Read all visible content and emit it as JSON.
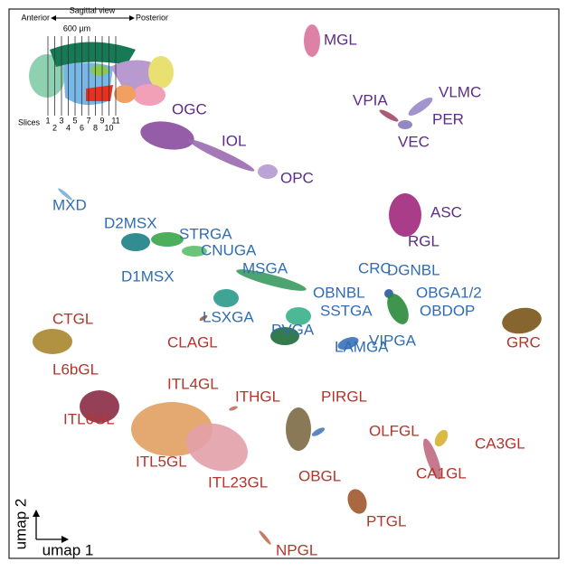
{
  "inset": {
    "anterior": "Anterior",
    "view": "Sagittal view",
    "posterior": "Posterior",
    "scale": "600 µm",
    "slices_label": "Slices",
    "slices": [
      "1",
      "2",
      "3",
      "4",
      "5",
      "6",
      "7",
      "8",
      "9",
      "10",
      "11"
    ]
  },
  "clusters": [
    {
      "label": "MGL",
      "color": "#5b2d86"
    },
    {
      "label": "OGC",
      "color": "#5b2d86"
    },
    {
      "label": "IOL",
      "color": "#5b2d86"
    },
    {
      "label": "OPC",
      "color": "#5b2d86"
    },
    {
      "label": "VPIA",
      "color": "#5b2d86"
    },
    {
      "label": "VLMC",
      "color": "#5b2d86"
    },
    {
      "label": "PER",
      "color": "#5b2d86"
    },
    {
      "label": "VEC",
      "color": "#5b2d86"
    },
    {
      "label": "MXD",
      "color": "#2f6db3"
    },
    {
      "label": "D2MSX",
      "color": "#2f6db3"
    },
    {
      "label": "STRGA",
      "color": "#2f6db3"
    },
    {
      "label": "CNUGA",
      "color": "#2f6db3"
    },
    {
      "label": "D1MSX",
      "color": "#2f6db3"
    },
    {
      "label": "MSGA",
      "color": "#2f6db3"
    },
    {
      "label": "LSXGA",
      "color": "#2f6db3"
    },
    {
      "label": "PVGA",
      "color": "#2f6db3"
    },
    {
      "label": "LAMGA",
      "color": "#2f6db3"
    },
    {
      "label": "VIPGA",
      "color": "#2f6db3"
    },
    {
      "label": "SSTGA",
      "color": "#2f6db3"
    },
    {
      "label": "OBNBL",
      "color": "#2f6db3"
    },
    {
      "label": "CRC",
      "color": "#2f6db3"
    },
    {
      "label": "DGNBL",
      "color": "#2f6db3"
    },
    {
      "label": "OBGA1/2",
      "color": "#2f6db3"
    },
    {
      "label": "OBDOP",
      "color": "#2f6db3"
    },
    {
      "label": "ASC",
      "color": "#5b2d86"
    },
    {
      "label": "RGL",
      "color": "#5b2d86"
    },
    {
      "label": "GRC",
      "color": "#b3352b"
    },
    {
      "label": "CTGL",
      "color": "#b3352b"
    },
    {
      "label": "L6bGL",
      "color": "#b3352b"
    },
    {
      "label": "CLAGL",
      "color": "#b3352b"
    },
    {
      "label": "ITL4GL",
      "color": "#b3352b"
    },
    {
      "label": "ITHGL",
      "color": "#b3352b"
    },
    {
      "label": "ITL6GL",
      "color": "#b3352b"
    },
    {
      "label": "ITL5GL",
      "color": "#b3352b"
    },
    {
      "label": "ITL23GL",
      "color": "#b3352b"
    },
    {
      "label": "PIRGL",
      "color": "#b3352b"
    },
    {
      "label": "OLFGL",
      "color": "#b3352b"
    },
    {
      "label": "OBGL",
      "color": "#b3352b"
    },
    {
      "label": "CA3GL",
      "color": "#b3352b"
    },
    {
      "label": "CA1GL",
      "color": "#b3352b"
    },
    {
      "label": "PTGL",
      "color": "#b3352b"
    },
    {
      "label": "NPGL",
      "color": "#b3352b"
    }
  ],
  "axes": {
    "y": "umap 2",
    "x": "umap 1"
  }
}
